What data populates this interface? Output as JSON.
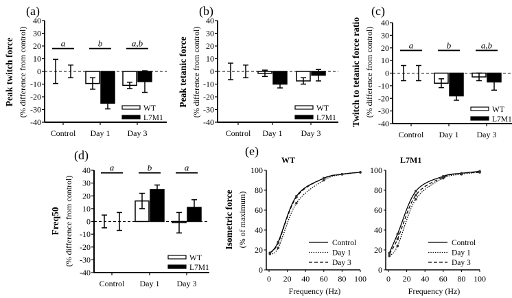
{
  "chart_data": [
    {
      "type": "bar",
      "panel_label": "(a)",
      "title": "",
      "ylabel": "Peak twitch force",
      "ylabel_sub": "(% difference from control)",
      "ylim": [
        -40,
        40
      ],
      "yticks": [
        "40",
        "30",
        "20",
        "10",
        "0",
        "-10",
        "-20",
        "-30",
        "-40"
      ],
      "categories": [
        "Control",
        "Day 1",
        "Day 3"
      ],
      "significance": [
        "a",
        "b",
        "a,b"
      ],
      "series": [
        {
          "name": "WT",
          "color": "#ffffff",
          "values": [
            0,
            -9.5,
            -11
          ],
          "errors": [
            9.5,
            4.5,
            2.5
          ]
        },
        {
          "name": "L7M1",
          "color": "#000000",
          "values": [
            0,
            -25,
            -8
          ],
          "errors": [
            5,
            4.5,
            8.5
          ]
        }
      ]
    },
    {
      "type": "bar",
      "panel_label": "(b)",
      "title": "",
      "ylabel": "Peak tetanic force",
      "ylabel_sub": "(% difference from control)",
      "ylim": [
        -40,
        40
      ],
      "yticks": [
        "40",
        "30",
        "20",
        "10",
        "0",
        "-10",
        "-20",
        "-30",
        "-40"
      ],
      "categories": [
        "Control",
        "Day 1",
        "Day 3"
      ],
      "significance": [],
      "series": [
        {
          "name": "WT",
          "color": "#ffffff",
          "values": [
            0,
            -1.5,
            -7.5
          ],
          "errors": [
            6.5,
            2.5,
            2.5
          ]
        },
        {
          "name": "L7M1",
          "color": "#000000",
          "values": [
            0,
            -10,
            -3
          ],
          "errors": [
            5,
            3,
            4.5
          ]
        }
      ]
    },
    {
      "type": "bar",
      "panel_label": "(c)",
      "title": "",
      "ylabel": "Twitch to tetanic force ratio",
      "ylabel_sub": "(% difference from control)",
      "ylim": [
        -40,
        40
      ],
      "yticks": [
        "40",
        "30",
        "20",
        "10",
        "0",
        "-10",
        "-20",
        "-30",
        "-40"
      ],
      "categories": [
        "Control",
        "Day 1",
        "Day 3"
      ],
      "significance": [
        "a",
        "b",
        "a,b"
      ],
      "series": [
        {
          "name": "WT",
          "color": "#ffffff",
          "values": [
            0,
            -8,
            -3
          ],
          "errors": [
            6,
            3.5,
            3
          ]
        },
        {
          "name": "L7M1",
          "color": "#000000",
          "values": [
            0,
            -18,
            -7
          ],
          "errors": [
            6,
            3.5,
            6.5
          ]
        }
      ]
    },
    {
      "type": "bar",
      "panel_label": "(d)",
      "title": "",
      "ylabel": "Freq50",
      "ylabel_sub": "(% difference from control)",
      "ylim": [
        -40,
        40
      ],
      "yticks": [
        "40",
        "30",
        "20",
        "10",
        "0",
        "-10",
        "-20",
        "-30",
        "-40"
      ],
      "categories": [
        "Control",
        "Day 1",
        "Day 3"
      ],
      "significance": [
        "a",
        "b",
        "a"
      ],
      "series": [
        {
          "name": "WT",
          "color": "#ffffff",
          "values": [
            0,
            16,
            -1
          ],
          "errors": [
            5,
            6,
            8
          ]
        },
        {
          "name": "L7M1",
          "color": "#000000",
          "values": [
            0,
            25,
            11
          ],
          "errors": [
            7,
            3.5,
            6
          ]
        }
      ]
    },
    {
      "type": "line",
      "panel_label": "(e)",
      "title": "WT",
      "ylabel": "Isometric force",
      "ylabel_sub": "(% of maximum)",
      "xlabel": "Frequency (Hz)",
      "xlim": [
        0,
        100
      ],
      "ylim": [
        0,
        100
      ],
      "xticks": [
        "0",
        "20",
        "40",
        "60",
        "80",
        "100"
      ],
      "yticks": [
        "0",
        "20",
        "40",
        "60",
        "80",
        "100"
      ],
      "x": [
        1,
        10,
        30,
        60,
        80,
        100
      ],
      "series": [
        {
          "name": "Control",
          "style": "solid",
          "values": [
            17,
            28,
            74,
            92,
            96,
            98
          ]
        },
        {
          "name": "Day 1",
          "style": "dotted",
          "values": [
            16,
            22,
            67,
            90,
            96,
            98
          ]
        },
        {
          "name": "Day 3",
          "style": "dashed",
          "values": [
            17,
            27,
            73,
            92,
            96,
            98
          ]
        }
      ]
    },
    {
      "type": "line",
      "panel_label": "",
      "title": "L7M1",
      "ylabel": "",
      "ylabel_sub": "",
      "xlabel": "Frequency (Hz)",
      "xlim": [
        0,
        100
      ],
      "ylim": [
        0,
        100
      ],
      "xticks": [
        "0",
        "20",
        "40",
        "60",
        "80",
        "100"
      ],
      "yticks": [
        "0",
        "20",
        "40",
        "60",
        "80",
        "100"
      ],
      "x": [
        1,
        10,
        30,
        60,
        80,
        100
      ],
      "series": [
        {
          "name": "Control",
          "style": "solid",
          "values": [
            17,
            36,
            79,
            94,
            97,
            99
          ]
        },
        {
          "name": "Day 1",
          "style": "dotted",
          "values": [
            14,
            24,
            71,
            92,
            96,
            98
          ]
        },
        {
          "name": "Day 3",
          "style": "dashed",
          "values": [
            16,
            31,
            75,
            93,
            97,
            98
          ]
        }
      ]
    }
  ]
}
